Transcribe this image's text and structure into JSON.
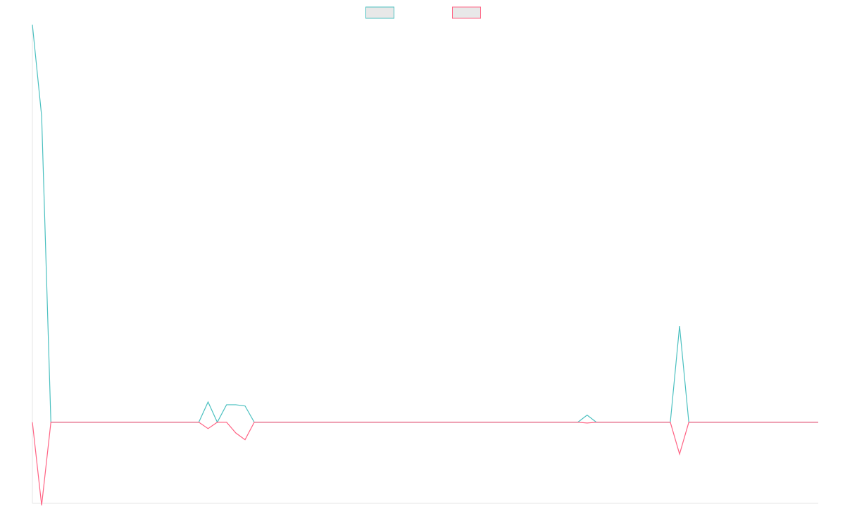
{
  "chart_data": {
    "type": "line",
    "categories": [
      null,
      null,
      null,
      null,
      null,
      null,
      null,
      null,
      null,
      null,
      null,
      null,
      null,
      null,
      null,
      null,
      null,
      null,
      null,
      null,
      null,
      null,
      null,
      null,
      null,
      null,
      null,
      null,
      null,
      null,
      null,
      null,
      null,
      null,
      null,
      null,
      null,
      null,
      null,
      null,
      null,
      null,
      null,
      null,
      null,
      null,
      null,
      null,
      null,
      null,
      null,
      null,
      null,
      null,
      null,
      null,
      null,
      null,
      null,
      null,
      null,
      null,
      null,
      null,
      null,
      null,
      null,
      null,
      null,
      null,
      null,
      null,
      null,
      null,
      null,
      null,
      null,
      null,
      null,
      null,
      null,
      null,
      null,
      null,
      null,
      null
    ],
    "series": [
      {
        "color": "#4bc0c0",
        "values": [
          100,
          77,
          0,
          0,
          0,
          0,
          0,
          0,
          0,
          0,
          0,
          0,
          0,
          0,
          0,
          0,
          0,
          0,
          0,
          5.1,
          0,
          4.4,
          4.4,
          4.1,
          0,
          0,
          0,
          0,
          0,
          0,
          0,
          0,
          0,
          0,
          0,
          0,
          0,
          0,
          0,
          0,
          0,
          0,
          0,
          0,
          0,
          0,
          0,
          0,
          0,
          0,
          0,
          0,
          0,
          0,
          0,
          0,
          0,
          0,
          0,
          0,
          1.8,
          0,
          0,
          0,
          0,
          0,
          0,
          0,
          0,
          0,
          24.2,
          0,
          0,
          0,
          0,
          0,
          0,
          0,
          0,
          0,
          0,
          0,
          0,
          0,
          0,
          0
        ]
      },
      {
        "color": "#ff6384",
        "values": [
          0,
          -20.9,
          0,
          0,
          0,
          0,
          0,
          0,
          0,
          0,
          0,
          0,
          0,
          0,
          0,
          0,
          0,
          0,
          0,
          -1.6,
          0,
          0,
          -2.7,
          -4.4,
          0,
          0,
          0,
          0,
          0,
          0,
          0,
          0,
          0,
          0,
          0,
          0,
          0,
          0,
          0,
          0,
          0,
          0,
          0,
          0,
          0,
          0,
          0,
          0,
          0,
          0,
          0,
          0,
          0,
          0,
          0,
          0,
          0,
          0,
          0,
          0,
          -0.2,
          0,
          0,
          0,
          0,
          0,
          0,
          0,
          0,
          0,
          -8,
          0,
          0,
          0,
          0,
          0,
          0,
          0,
          0,
          0,
          0,
          0,
          0,
          0,
          0,
          0
        ]
      }
    ],
    "ylim": [
      -20.4,
      100
    ],
    "legend": "top"
  }
}
